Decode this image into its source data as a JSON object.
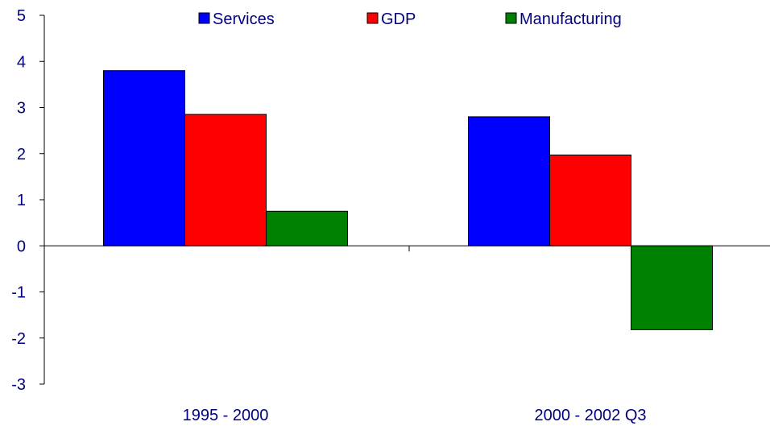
{
  "chart_data": {
    "type": "bar",
    "categories": [
      "1995 - 2000",
      "2000 - 2002 Q3"
    ],
    "series": [
      {
        "name": "Services",
        "values": [
          3.8,
          2.8
        ],
        "color": "#0000ff"
      },
      {
        "name": "GDP",
        "values": [
          2.85,
          1.97
        ],
        "color": "#ff0000"
      },
      {
        "name": "Manufacturing",
        "values": [
          0.75,
          -1.82
        ],
        "color": "#008000"
      }
    ],
    "ylim": [
      -3,
      5
    ],
    "yticks": [
      "-3",
      "-2",
      "-1",
      "0",
      "1",
      "2",
      "3",
      "4",
      "5"
    ],
    "legend_position": "top",
    "grid": false,
    "title": "",
    "xlabel": "",
    "ylabel": ""
  }
}
